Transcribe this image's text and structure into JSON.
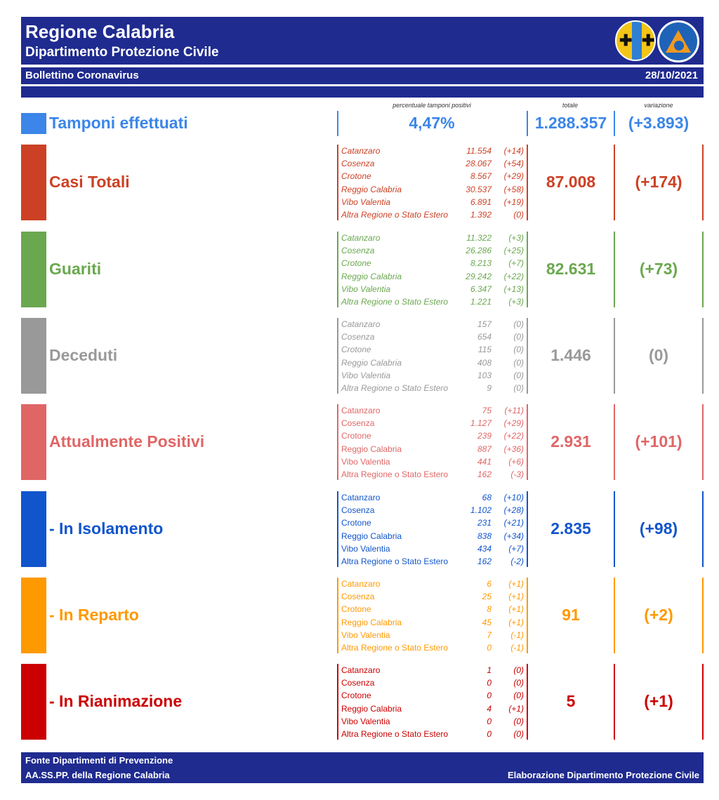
{
  "header": {
    "title": "Regione Calabria",
    "subtitle": "Dipartimento Protezione Civile",
    "bulletin": "Bollettino Coronavirus",
    "date": "28/10/2021"
  },
  "columns": {
    "pct_label": "percentuale tamponi positivi",
    "total_label": "totale",
    "change_label": "variazione"
  },
  "tamponi": {
    "label": "Tamponi effettuati",
    "pct": "4,47%",
    "total": "1.288.357",
    "change": "(+3.893)",
    "color": "#3b86e8"
  },
  "sections": [
    {
      "label": "Casi Totali",
      "color": "#cc4125",
      "total": "87.008",
      "change": "(+174)",
      "rows": [
        {
          "name": "Catanzaro",
          "value": "11.554",
          "delta": "(+14)"
        },
        {
          "name": "Cosenza",
          "value": "28.067",
          "delta": "(+54)"
        },
        {
          "name": "Crotone",
          "value": "8.567",
          "delta": "(+29)"
        },
        {
          "name": "Reggio Calabria",
          "value": "30.537",
          "delta": "(+58)"
        },
        {
          "name": "Vibo Valentia",
          "value": "6.891",
          "delta": "(+19)"
        },
        {
          "name": "Altra Regione o Stato Estero",
          "value": "1.392",
          "delta": "(0)"
        }
      ]
    },
    {
      "label": "Guariti",
      "color": "#6aa84f",
      "total": "82.631",
      "change": "(+73)",
      "rows": [
        {
          "name": "Catanzaro",
          "value": "11.322",
          "delta": "(+3)"
        },
        {
          "name": "Cosenza",
          "value": "26.286",
          "delta": "(+25)"
        },
        {
          "name": "Crotone",
          "value": "8.213",
          "delta": "(+7)"
        },
        {
          "name": "Reggio Calabria",
          "value": "29.242",
          "delta": "(+22)"
        },
        {
          "name": "Vibo Valentia",
          "value": "6.347",
          "delta": "(+13)"
        },
        {
          "name": "Altra Regione o Stato Estero",
          "value": "1.221",
          "delta": "(+3)"
        }
      ]
    },
    {
      "label": "Deceduti",
      "color": "#999999",
      "total": "1.446",
      "change": "(0)",
      "rows": [
        {
          "name": "Catanzaro",
          "value": "157",
          "delta": "(0)"
        },
        {
          "name": "Cosenza",
          "value": "654",
          "delta": "(0)"
        },
        {
          "name": "Crotone",
          "value": "115",
          "delta": "(0)"
        },
        {
          "name": "Reggio Calabria",
          "value": "408",
          "delta": "(0)"
        },
        {
          "name": "Vibo Valentia",
          "value": "103",
          "delta": "(0)"
        },
        {
          "name": "Altra Regione o Stato Estero",
          "value": "9",
          "delta": "(0)"
        }
      ]
    },
    {
      "label": "Attualmente Positivi",
      "color": "#e06666",
      "total": "2.931",
      "change": "(+101)",
      "rows": [
        {
          "name": "Catanzaro",
          "value": "75",
          "delta": "(+11)"
        },
        {
          "name": "Cosenza",
          "value": "1.127",
          "delta": "(+29)"
        },
        {
          "name": "Crotone",
          "value": "239",
          "delta": "(+22)"
        },
        {
          "name": "Reggio Calabria",
          "value": "887",
          "delta": "(+36)"
        },
        {
          "name": "Vibo Valentia",
          "value": "441",
          "delta": "(+6)"
        },
        {
          "name": "Altra Regione o Stato Estero",
          "value": "162",
          "delta": "(-3)"
        }
      ]
    },
    {
      "label": "- In Isolamento",
      "color": "#1155cc",
      "total": "2.835",
      "change": "(+98)",
      "rows": [
        {
          "name": "Catanzaro",
          "value": "68",
          "delta": "(+10)"
        },
        {
          "name": "Cosenza",
          "value": "1.102",
          "delta": "(+28)"
        },
        {
          "name": "Crotone",
          "value": "231",
          "delta": "(+21)"
        },
        {
          "name": "Reggio Calabria",
          "value": "838",
          "delta": "(+34)"
        },
        {
          "name": "Vibo Valentia",
          "value": "434",
          "delta": "(+7)"
        },
        {
          "name": "Altra Regione o Stato Estero",
          "value": "162",
          "delta": "(-2)"
        }
      ]
    },
    {
      "label": "- In Reparto",
      "color": "#ff9900",
      "total": "91",
      "change": "(+2)",
      "rows": [
        {
          "name": "Catanzaro",
          "value": "6",
          "delta": "(+1)"
        },
        {
          "name": "Cosenza",
          "value": "25",
          "delta": "(+1)"
        },
        {
          "name": "Crotone",
          "value": "8",
          "delta": "(+1)"
        },
        {
          "name": "Reggio Calabria",
          "value": "45",
          "delta": "(+1)"
        },
        {
          "name": "Vibo Valentia",
          "value": "7",
          "delta": "(-1)"
        },
        {
          "name": "Altra Regione o Stato Estero",
          "value": "0",
          "delta": "(-1)"
        }
      ]
    },
    {
      "label": "- In Rianimazione",
      "color": "#cc0000",
      "total": "5",
      "change": "(+1)",
      "rows": [
        {
          "name": "Catanzaro",
          "value": "1",
          "delta": "(0)"
        },
        {
          "name": "Cosenza",
          "value": "0",
          "delta": "(0)"
        },
        {
          "name": "Crotone",
          "value": "0",
          "delta": "(0)"
        },
        {
          "name": "Reggio Calabria",
          "value": "4",
          "delta": "(+1)"
        },
        {
          "name": "Vibo Valentia",
          "value": "0",
          "delta": "(0)"
        },
        {
          "name": "Altra Regione o Stato Estero",
          "value": "0",
          "delta": "(0)"
        }
      ]
    }
  ],
  "footer": {
    "source_line1": "Fonte Dipartimenti di Prevenzione",
    "source_line2": "AA.SS.PP.  della Regione Calabria",
    "credit": "Elaborazione Dipartimento Protezione Civile"
  }
}
